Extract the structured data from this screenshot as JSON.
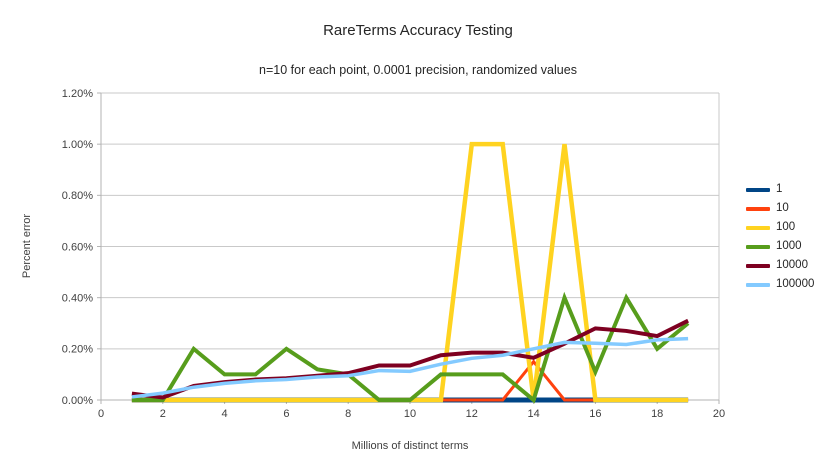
{
  "chart_data": {
    "type": "line",
    "title": "RareTerms Accuracy Testing",
    "subtitle": "n=10 for each point, 0.0001 precision, randomized values",
    "xlabel": "Millions of distinct terms",
    "ylabel": "Percent error",
    "xlim": [
      0,
      20
    ],
    "ylim": [
      0,
      1.2
    ],
    "x_ticks": [
      0,
      2,
      4,
      6,
      8,
      10,
      12,
      14,
      16,
      18,
      20
    ],
    "y_ticks": [
      0.0,
      0.2,
      0.4,
      0.6,
      0.8,
      1.0,
      1.2
    ],
    "y_tick_format": "0.00%",
    "grid": "horizontal",
    "legend_position": "right",
    "colors": {
      "grid": "#c9c9c9",
      "axis": "#b3b3b3",
      "text": "#404040"
    },
    "x": [
      1,
      2,
      3,
      4,
      5,
      6,
      7,
      8,
      9,
      10,
      11,
      12,
      13,
      14,
      15,
      16,
      17,
      18,
      19
    ],
    "series": [
      {
        "name": "1",
        "color": "#004586",
        "values": [
          0,
          0,
          0,
          0,
          0,
          0,
          0,
          0,
          0,
          0,
          0,
          0,
          0,
          0,
          0,
          0,
          0,
          0,
          0
        ]
      },
      {
        "name": "10",
        "color": "#FF420E",
        "values": [
          0,
          0,
          0,
          0,
          0,
          0,
          0,
          0,
          0,
          0,
          0,
          0,
          0,
          0.15,
          0,
          0,
          0,
          0,
          0
        ]
      },
      {
        "name": "100",
        "color": "#FFD320",
        "values": [
          0,
          0,
          0,
          0,
          0,
          0,
          0,
          0,
          0,
          0,
          0,
          1.0,
          1.0,
          0,
          1.0,
          0,
          0,
          0,
          0
        ]
      },
      {
        "name": "1000",
        "color": "#579D1C",
        "values": [
          0,
          0,
          0.2,
          0.1,
          0.1,
          0.2,
          0.12,
          0.1,
          0,
          0,
          0.1,
          0.1,
          0.1,
          0,
          0.4,
          0.11,
          0.4,
          0.2,
          0.3
        ]
      },
      {
        "name": "10000",
        "color": "#7E0021",
        "values": [
          0.025,
          0.01,
          0.055,
          0.07,
          0.08,
          0.085,
          0.095,
          0.105,
          0.135,
          0.135,
          0.175,
          0.185,
          0.185,
          0.165,
          0.22,
          0.28,
          0.27,
          0.25,
          0.31
        ]
      },
      {
        "name": "100000",
        "color": "#83CAFF",
        "values": [
          0.012,
          0.027,
          0.05,
          0.065,
          0.075,
          0.08,
          0.09,
          0.095,
          0.115,
          0.112,
          0.14,
          0.163,
          0.175,
          0.2,
          0.225,
          0.222,
          0.217,
          0.235,
          0.24
        ]
      }
    ]
  }
}
